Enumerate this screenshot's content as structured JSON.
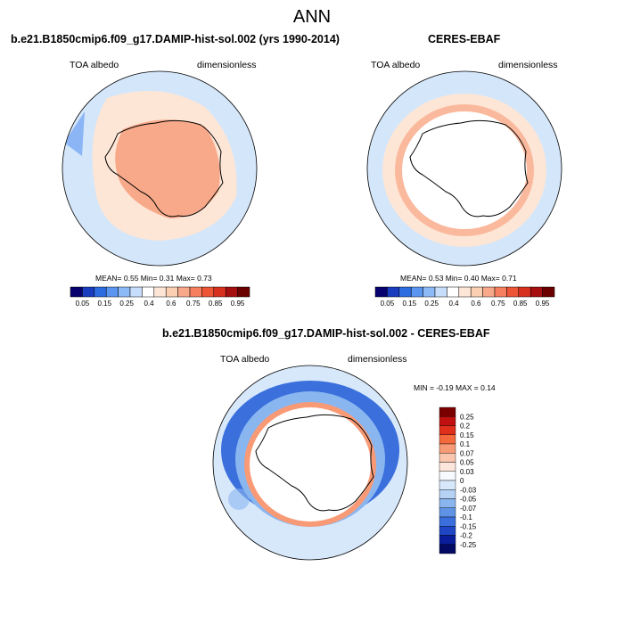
{
  "page": {
    "title": "ANN"
  },
  "panels": [
    {
      "title": "b.e21.B1850cmip6.f09_g17.DAMIP-hist-sol.002 (yrs 1990-2014)",
      "left_label": "TOA albedo",
      "right_label": "dimensionless",
      "stats": "MEAN=  0.55  Min=  0.31  Max=  0.73"
    },
    {
      "title": "CERES-EBAF",
      "left_label": "TOA albedo",
      "right_label": "dimensionless",
      "stats": "MEAN=  0.53  Min=  0.40  Max=  0.71"
    },
    {
      "title": "b.e21.B1850cmip6.f09_g17.DAMIP-hist-sol.002 - CERES-EBAF",
      "left_label": "TOA albedo",
      "right_label": "dimensionless",
      "stats": "MIN =  -0.19 MAX =   0.14"
    }
  ],
  "colorbar_abs": {
    "colors": [
      "#08026e",
      "#1a3cbf",
      "#2d6be0",
      "#5a95f0",
      "#8cbaf7",
      "#c6defb",
      "#ffffff",
      "#fde6d6",
      "#fbcfb1",
      "#f8a98a",
      "#f57f5f",
      "#ee5436",
      "#d7301f",
      "#a50f0f",
      "#6b0000"
    ],
    "tick_labels": [
      "0.05",
      "0.15",
      "0.25",
      "0.4",
      "0.6",
      "0.75",
      "0.85",
      "0.95"
    ]
  },
  "colorbar_diff": {
    "colors": [
      "#7a0000",
      "#c01010",
      "#e0301b",
      "#f56a3c",
      "#f89a76",
      "#fbc6ae",
      "#fde7dc",
      "#f7fbff",
      "#d7e8fb",
      "#b6d3f6",
      "#8ab6f0",
      "#5f93e6",
      "#3a6fdc",
      "#1f46c4",
      "#0a1e9c",
      "#020a63"
    ],
    "tick_labels": [
      "0.25",
      "0.2",
      "0.15",
      "0.1",
      "0.07",
      "0.05",
      "0.03",
      "0",
      "-0.03",
      "-0.05",
      "-0.07",
      "-0.1",
      "-0.15",
      "-0.2",
      "-0.25"
    ]
  }
}
